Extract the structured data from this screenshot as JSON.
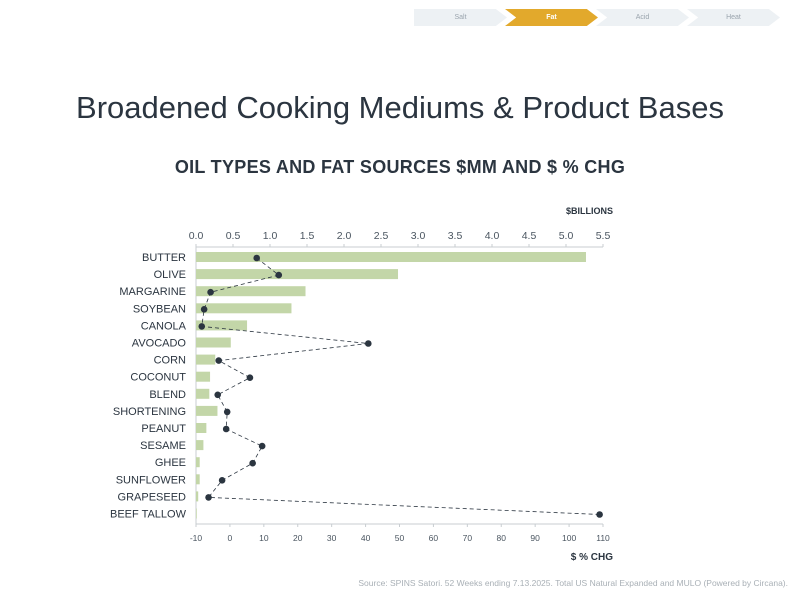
{
  "steps": [
    {
      "label": "Salt",
      "active": false
    },
    {
      "label": "Fat",
      "active": true
    },
    {
      "label": "Acid",
      "active": false
    },
    {
      "label": "Heat",
      "active": false
    }
  ],
  "page_title": "Broadened Cooking Mediums & Product Bases",
  "source": "Source: SPINS Satori. 52 Weeks ending 7.13.2025. Total US Natural Expanded and MULO (Powered by Circana).",
  "colors": {
    "bar": "#c3d6a8",
    "dot": "#2b3540",
    "accent": "#e2a92c"
  },
  "chart_data": {
    "type": "bar",
    "orientation": "horizontal",
    "title": "OIL TYPES AND FAT SOURCES $MM AND $ % CHG",
    "categories": [
      "BUTTER",
      "OLIVE",
      "MARGARINE",
      "SOYBEAN",
      "CANOLA",
      "AVOCADO",
      "CORN",
      "COCONUT",
      "BLEND",
      "SHORTENING",
      "PEANUT",
      "SESAME",
      "GHEE",
      "SUNFLOWER",
      "GRAPESEED",
      "BEEF TALLOW"
    ],
    "bar_axis": {
      "label": "$BILLIONS",
      "range": [
        0,
        5.5
      ],
      "ticks": [
        "0.0",
        "0.5",
        "1.0",
        "1.5",
        "2.0",
        "2.5",
        "3.0",
        "3.5",
        "4.0",
        "4.5",
        "5.0",
        "5.5"
      ],
      "position": "top"
    },
    "bar_values": [
      5.27,
      2.73,
      1.48,
      1.29,
      0.69,
      0.47,
      0.26,
      0.19,
      0.18,
      0.29,
      0.14,
      0.1,
      0.05,
      0.05,
      0.03,
      0.01
    ],
    "line_axis": {
      "label": "$ % CHG",
      "range": [
        -10,
        110
      ],
      "ticks": [
        "-10",
        "0",
        "10",
        "20",
        "30",
        "40",
        "50",
        "60",
        "70",
        "80",
        "90",
        "100",
        "110"
      ],
      "position": "bottom"
    },
    "line_values": [
      7.9,
      14.4,
      -5.7,
      -7.6,
      -8.3,
      40.8,
      -3.3,
      5.9,
      -3.6,
      -0.8,
      -1.1,
      9.5,
      6.7,
      -2.3,
      -6.3,
      109
    ],
    "grid": false
  }
}
